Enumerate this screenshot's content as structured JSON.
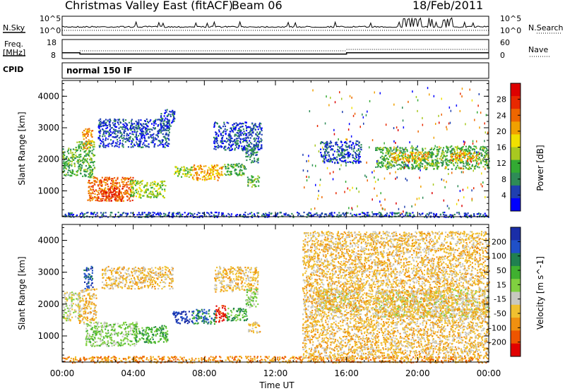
{
  "header": {
    "title": "Christmas Valley East (fitACF)",
    "beam": "Beam 06",
    "date": "18/Feb/2011"
  },
  "strip_panels": {
    "noise": {
      "left_label": "N.Sky",
      "right_label": "N.Search",
      "left_ticks": [
        "10^5",
        "10^0"
      ],
      "right_ticks": [
        "10^5",
        "10^0"
      ]
    },
    "freq": {
      "left_label_1": "Freq.",
      "left_label_2": "[MHz]",
      "right_label": "Nave",
      "left_ticks": [
        "18",
        "8"
      ],
      "right_ticks": [
        "60",
        "0"
      ],
      "freq_steps": [
        {
          "t": 0.0,
          "mhz": 12
        },
        {
          "t": 1.0,
          "mhz": 11
        },
        {
          "t": 16.0,
          "mhz": 12
        },
        {
          "t": 24.0,
          "mhz": 12
        }
      ]
    },
    "cpid": {
      "label": "CPID",
      "mode": "normal 150 IF"
    }
  },
  "chart_data": [
    {
      "type": "heatmap",
      "title": "",
      "xlabel": "",
      "ylabel": "Slant Range [km]",
      "xlim": [
        0,
        24
      ],
      "ylim": [
        180,
        4500
      ],
      "x_ticks": [
        "00:00",
        "04:00",
        "08:00",
        "12:00",
        "16:00",
        "20:00",
        "00:00"
      ],
      "y_ticks": [
        1000,
        2000,
        3000,
        4000
      ],
      "colorbar": {
        "label": "Power [dB]",
        "ticks": [
          "4",
          "8",
          "12",
          "16",
          "20",
          "24",
          "28"
        ],
        "colors": [
          "#0000ff",
          "#1f3fb0",
          "#2e8b57",
          "#33aa33",
          "#a8c820",
          "#f0e000",
          "#f0a000",
          "#ee6600",
          "#e82800",
          "#dd0000"
        ]
      },
      "regions": [
        {
          "t0": 0.0,
          "t1": 0.8,
          "r0": 1500,
          "r1": 2400,
          "level": 3
        },
        {
          "t0": 0.8,
          "t1": 1.8,
          "r0": 1450,
          "r1": 2600,
          "level": 3
        },
        {
          "t0": 1.1,
          "t1": 1.7,
          "r0": 2350,
          "r1": 3000,
          "level": 6
        },
        {
          "t0": 1.4,
          "t1": 4.0,
          "r0": 700,
          "r1": 1450,
          "level": 7
        },
        {
          "t0": 2.2,
          "t1": 3.4,
          "r0": 700,
          "r1": 1100,
          "level": 8
        },
        {
          "t0": 3.8,
          "t1": 5.8,
          "r0": 800,
          "r1": 1350,
          "level": 4
        },
        {
          "t0": 2.0,
          "t1": 6.0,
          "r0": 2400,
          "r1": 3300,
          "level": 1
        },
        {
          "t0": 5.5,
          "t1": 6.3,
          "r0": 3000,
          "r1": 3600,
          "level": 1
        },
        {
          "t0": 6.2,
          "t1": 7.3,
          "r0": 1450,
          "r1": 1800,
          "level": 4
        },
        {
          "t0": 7.3,
          "t1": 9.0,
          "r0": 1350,
          "r1": 1850,
          "level": 6
        },
        {
          "t0": 9.0,
          "t1": 10.3,
          "r0": 1500,
          "r1": 1900,
          "level": 3
        },
        {
          "t0": 8.5,
          "t1": 11.2,
          "r0": 2300,
          "r1": 3200,
          "level": 1
        },
        {
          "t0": 10.4,
          "t1": 11.1,
          "r0": 1150,
          "r1": 1500,
          "level": 3
        },
        {
          "t0": 10.3,
          "t1": 11.0,
          "r0": 1900,
          "r1": 2500,
          "level": 2
        },
        {
          "t0": 14.5,
          "t1": 16.8,
          "r0": 1900,
          "r1": 2600,
          "level": 1
        },
        {
          "t0": 17.6,
          "t1": 21.0,
          "r0": 1700,
          "r1": 2400,
          "level": 3
        },
        {
          "t0": 18.5,
          "t1": 20.6,
          "r0": 1950,
          "r1": 2250,
          "level": 6
        },
        {
          "t0": 21.0,
          "t1": 24.0,
          "r0": 1700,
          "r1": 2450,
          "level": 3
        },
        {
          "t0": 21.8,
          "t1": 23.4,
          "r0": 1950,
          "r1": 2250,
          "level": 6
        },
        {
          "t0": 0.0,
          "t1": 24.0,
          "r0": 180,
          "r1": 340,
          "level": 1
        },
        {
          "t0": 13.5,
          "t1": 24.0,
          "r0": 300,
          "r1": 4300,
          "level": 0
        }
      ]
    },
    {
      "type": "heatmap",
      "title": "",
      "xlabel": "Time UT",
      "ylabel": "Slant Range [km]",
      "xlim": [
        0,
        24
      ],
      "ylim": [
        180,
        4500
      ],
      "x_ticks": [
        "00:00",
        "04:00",
        "08:00",
        "12:00",
        "16:00",
        "20:00",
        "00:00"
      ],
      "y_ticks": [
        1000,
        2000,
        3000,
        4000
      ],
      "colorbar": {
        "label": "Velocity [m s^-1]",
        "ticks": [
          "200",
          "100",
          "50",
          "15",
          "-15",
          "-50",
          "-100",
          "-200"
        ],
        "colors": [
          "#1a2ea8",
          "#2050c8",
          "#208050",
          "#40b030",
          "#80d040",
          "#c8c8c0",
          "#f0c030",
          "#f09010",
          "#ee5500",
          "#e00000"
        ]
      },
      "regions": [
        {
          "t0": 0.0,
          "t1": 1.0,
          "r0": 1500,
          "r1": 2400,
          "level": 5
        },
        {
          "t0": 0.9,
          "t1": 1.9,
          "r0": 1400,
          "r1": 2500,
          "level": 6
        },
        {
          "t0": 1.2,
          "t1": 1.7,
          "r0": 2500,
          "r1": 3200,
          "level": 1
        },
        {
          "t0": 1.3,
          "t1": 4.2,
          "r0": 700,
          "r1": 1450,
          "level": 4
        },
        {
          "t0": 4.0,
          "t1": 5.9,
          "r0": 800,
          "r1": 1350,
          "level": 3
        },
        {
          "t0": 2.2,
          "t1": 6.2,
          "r0": 2500,
          "r1": 3200,
          "level": 6
        },
        {
          "t0": 6.2,
          "t1": 7.3,
          "r0": 1400,
          "r1": 1800,
          "level": 0
        },
        {
          "t0": 7.3,
          "t1": 8.6,
          "r0": 1400,
          "r1": 1850,
          "level": 2
        },
        {
          "t0": 8.6,
          "t1": 9.2,
          "r0": 1450,
          "r1": 2000,
          "level": 9
        },
        {
          "t0": 9.2,
          "t1": 10.4,
          "r0": 1500,
          "r1": 1900,
          "level": 3
        },
        {
          "t0": 8.5,
          "t1": 11.0,
          "r0": 2400,
          "r1": 3200,
          "level": 6
        },
        {
          "t0": 10.3,
          "t1": 11.0,
          "r0": 1900,
          "r1": 2500,
          "level": 4
        },
        {
          "t0": 10.4,
          "t1": 11.1,
          "r0": 1100,
          "r1": 1450,
          "level": 6
        },
        {
          "t0": 14.3,
          "t1": 16.8,
          "r0": 1800,
          "r1": 2500,
          "level": 5
        },
        {
          "t0": 17.5,
          "t1": 21.0,
          "r0": 1600,
          "r1": 2450,
          "level": 5
        },
        {
          "t0": 21.0,
          "t1": 24.0,
          "r0": 1600,
          "r1": 2500,
          "level": 5
        },
        {
          "t0": 0.0,
          "t1": 24.0,
          "r0": 180,
          "r1": 380,
          "level": 7
        },
        {
          "t0": 13.5,
          "t1": 24.0,
          "r0": 300,
          "r1": 4300,
          "level": 6
        }
      ]
    }
  ]
}
